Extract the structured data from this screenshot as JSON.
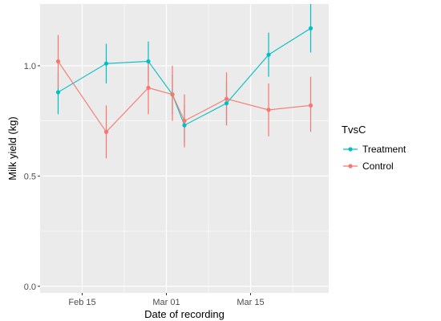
{
  "chart_data": {
    "type": "line",
    "title": "",
    "xlabel": "Date of recording",
    "ylabel": "Milk yield (kg)",
    "x_axis": {
      "type": "date",
      "range": [
        "2021-02-08",
        "2021-03-28"
      ],
      "tick_dates": [
        "2021-02-15",
        "2021-03-01",
        "2021-03-15"
      ],
      "tick_labels": [
        "Feb 15",
        "Mar 01",
        "Mar 15"
      ]
    },
    "y_axis": {
      "range": [
        -0.03,
        1.28
      ],
      "ticks": [
        0.0,
        0.5,
        1.0
      ],
      "tick_labels": [
        "0.0",
        "0.5",
        "1.0"
      ]
    },
    "legend": {
      "title": "TvsC",
      "placement": "right"
    },
    "grid": true,
    "series": [
      {
        "name": "Treatment",
        "color": "#00BFC4",
        "x": [
          "2021-02-11",
          "2021-02-19",
          "2021-02-26",
          "2021-03-02",
          "2021-03-04",
          "2021-03-11",
          "2021-03-18",
          "2021-03-25"
        ],
        "y": [
          0.88,
          1.01,
          1.02,
          0.87,
          0.73,
          0.83,
          1.05,
          1.17
        ],
        "lower": [
          0.78,
          0.92,
          0.93,
          0.78,
          0.65,
          0.73,
          0.95,
          1.06
        ],
        "upper": [
          0.97,
          1.1,
          1.11,
          0.96,
          0.82,
          0.93,
          1.15,
          1.28
        ]
      },
      {
        "name": "Control",
        "color": "#F8766D",
        "x": [
          "2021-02-11",
          "2021-02-19",
          "2021-02-26",
          "2021-03-02",
          "2021-03-04",
          "2021-03-11",
          "2021-03-18",
          "2021-03-25"
        ],
        "y": [
          1.02,
          0.7,
          0.9,
          0.87,
          0.75,
          0.85,
          0.8,
          0.82
        ],
        "lower": [
          0.9,
          0.58,
          0.78,
          0.75,
          0.63,
          0.73,
          0.68,
          0.7
        ],
        "upper": [
          1.14,
          0.82,
          1.02,
          1.0,
          0.87,
          0.97,
          0.92,
          0.95
        ]
      }
    ]
  }
}
